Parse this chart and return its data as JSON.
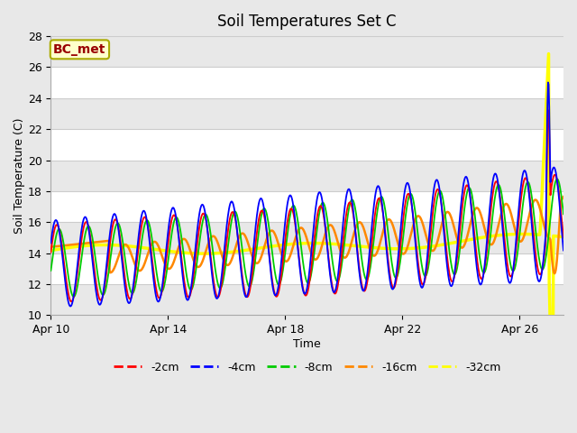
{
  "title": "Soil Temperatures Set C",
  "xlabel": "Time",
  "ylabel": "Soil Temperature (C)",
  "ylim": [
    10,
    28
  ],
  "xlim_days": [
    0,
    17.5
  ],
  "fig_bg_color": "#e8e8e8",
  "plot_bg_color": "#ffffff",
  "grid_color": "#cccccc",
  "band_color": "#e8e8e8",
  "annotation_text": "BC_met",
  "annotation_bg": "#ffffcc",
  "annotation_border": "#aaaa00",
  "annotation_text_color": "#990000",
  "legend_entries": [
    "-2cm",
    "-4cm",
    "-8cm",
    "-16cm",
    "-32cm"
  ],
  "legend_colors": [
    "#ff0000",
    "#0000ff",
    "#00cc00",
    "#ff8800",
    "#ffff00"
  ],
  "line_widths": [
    1.3,
    1.3,
    1.3,
    1.8,
    2.5
  ],
  "xtick_labels": [
    "Apr 10",
    "Apr 14",
    "Apr 18",
    "Apr 22",
    "Apr 26"
  ],
  "xtick_positions": [
    0,
    4,
    8,
    12,
    16
  ],
  "yticks": [
    10,
    12,
    14,
    16,
    18,
    20,
    22,
    24,
    26,
    28
  ]
}
